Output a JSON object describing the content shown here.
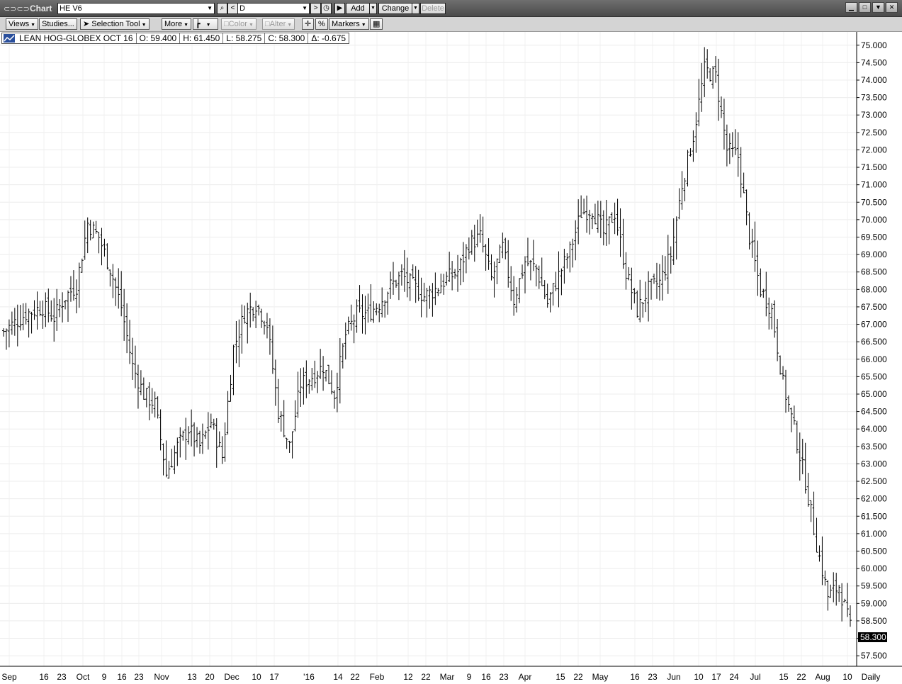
{
  "titlebar": {
    "title": "Chart",
    "symbol": "HE V6",
    "interval": "D",
    "add_label": "Add",
    "change_label": "Change",
    "delete_label": "Delete"
  },
  "toolbar": {
    "views": "Views",
    "studies": "Studies...",
    "selection_tool": "Selection Tool",
    "more": "More",
    "color": "Color",
    "alter": "Alter",
    "percent": "%",
    "markers": "Markers"
  },
  "legend": {
    "name": "LEAN HOG-GLOBEX OCT 16",
    "open": "O: 59.400",
    "high": "H: 61.450",
    "low": "L: 58.275",
    "close": "C: 58.300",
    "change": "Δ: -0.675"
  },
  "chart_data": {
    "type": "bar",
    "style": "ohlc",
    "ylim": [
      57.3,
      75.3
    ],
    "yticks": [
      "75.000",
      "74.500",
      "74.000",
      "73.500",
      "73.000",
      "72.500",
      "72.000",
      "71.500",
      "71.000",
      "70.500",
      "70.000",
      "69.500",
      "69.000",
      "68.500",
      "68.000",
      "67.500",
      "67.000",
      "66.500",
      "66.000",
      "65.500",
      "65.000",
      "64.500",
      "64.000",
      "63.500",
      "63.000",
      "62.500",
      "62.000",
      "61.500",
      "61.000",
      "60.500",
      "60.000",
      "59.500",
      "59.000",
      "58.500",
      "58.000",
      "57.500"
    ],
    "xticks": [
      "Sep",
      "16",
      "23",
      "Oct",
      "9",
      "16",
      "23",
      "Nov",
      "13",
      "20",
      "Dec",
      "10",
      "17",
      "'16",
      "14",
      "22",
      "Feb",
      "12",
      "22",
      "Mar",
      "9",
      "16",
      "23",
      "Apr",
      "15",
      "22",
      "May",
      "16",
      "23",
      "Jun",
      "10",
      "17",
      "24",
      "Jul",
      "15",
      "22",
      "Aug",
      "10",
      "Daily"
    ],
    "last_price": "58.300",
    "grid": true,
    "anchors": [
      [
        0,
        66.8
      ],
      [
        8,
        67.3
      ],
      [
        14,
        67.5
      ],
      [
        18,
        67.2
      ],
      [
        22,
        67.8
      ],
      [
        26,
        68.1
      ],
      [
        30,
        69.9
      ],
      [
        34,
        69.5
      ],
      [
        38,
        68.6
      ],
      [
        42,
        67.5
      ],
      [
        46,
        65.8
      ],
      [
        50,
        65.0
      ],
      [
        54,
        64.7
      ],
      [
        58,
        62.7
      ],
      [
        62,
        63.5
      ],
      [
        66,
        64.0
      ],
      [
        70,
        63.5
      ],
      [
        74,
        64.2
      ],
      [
        78,
        63.2
      ],
      [
        82,
        66.3
      ],
      [
        86,
        67.3
      ],
      [
        90,
        67.6
      ],
      [
        94,
        67.0
      ],
      [
        98,
        64.5
      ],
      [
        102,
        63.5
      ],
      [
        106,
        65.3
      ],
      [
        110,
        65.5
      ],
      [
        114,
        65.8
      ],
      [
        118,
        65.0
      ],
      [
        122,
        66.7
      ],
      [
        126,
        67.3
      ],
      [
        130,
        67.3
      ],
      [
        134,
        67.6
      ],
      [
        138,
        68.1
      ],
      [
        142,
        68.4
      ],
      [
        146,
        68.1
      ],
      [
        150,
        67.8
      ],
      [
        154,
        68.0
      ],
      [
        158,
        68.3
      ],
      [
        162,
        68.5
      ],
      [
        166,
        69.3
      ],
      [
        170,
        69.5
      ],
      [
        174,
        68.3
      ],
      [
        178,
        69.2
      ],
      [
        182,
        67.7
      ],
      [
        186,
        68.8
      ],
      [
        190,
        68.6
      ],
      [
        194,
        67.6
      ],
      [
        198,
        68.4
      ],
      [
        202,
        69.1
      ],
      [
        206,
        70.2
      ],
      [
        210,
        70.3
      ],
      [
        214,
        69.6
      ],
      [
        218,
        70.2
      ],
      [
        222,
        68.5
      ],
      [
        226,
        67.4
      ],
      [
        230,
        68.0
      ],
      [
        234,
        68.2
      ],
      [
        238,
        69.0
      ],
      [
        242,
        71.0
      ],
      [
        246,
        72.4
      ],
      [
        250,
        74.3
      ],
      [
        254,
        74.1
      ],
      [
        258,
        72.0
      ],
      [
        262,
        71.8
      ],
      [
        266,
        69.5
      ],
      [
        270,
        68.0
      ],
      [
        274,
        67.4
      ],
      [
        278,
        65.3
      ],
      [
        282,
        64.0
      ],
      [
        286,
        62.5
      ],
      [
        290,
        60.7
      ],
      [
        294,
        59.2
      ],
      [
        298,
        59.5
      ],
      [
        302,
        58.3
      ]
    ]
  }
}
